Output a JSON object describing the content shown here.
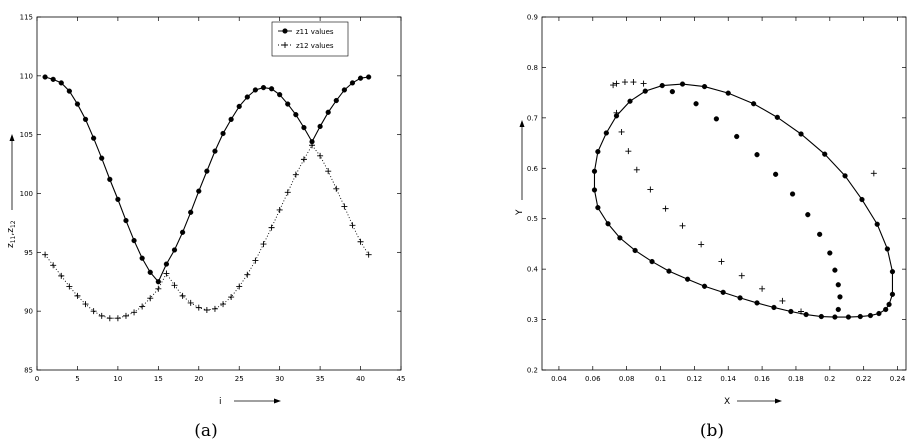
{
  "chart_data": [
    {
      "type": "line",
      "caption": "(a)",
      "xlabel": "i",
      "ylabel": "z11,z12",
      "xlim": [
        0,
        45
      ],
      "ylim": [
        85,
        115
      ],
      "xticks": [
        0,
        5,
        10,
        15,
        20,
        25,
        30,
        35,
        40,
        45
      ],
      "yticks": [
        85,
        90,
        95,
        100,
        105,
        110,
        115
      ],
      "legend_position": "top-right",
      "series": [
        {
          "name": "z11 values",
          "marker": "circle",
          "line": "solid",
          "x": [
            1,
            2,
            3,
            4,
            5,
            6,
            7,
            8,
            9,
            10,
            11,
            12,
            13,
            14,
            15,
            16,
            17,
            18,
            19,
            20,
            21,
            22,
            23,
            24,
            25,
            26,
            27,
            28,
            29,
            30,
            31,
            32,
            33,
            34,
            35,
            36,
            37,
            38,
            39,
            40,
            41
          ],
          "y": [
            109.9,
            109.7,
            109.4,
            108.7,
            107.6,
            106.3,
            104.7,
            103.0,
            101.2,
            99.5,
            97.7,
            96.0,
            94.5,
            93.3,
            92.5,
            94.0,
            95.2,
            96.7,
            98.4,
            100.2,
            101.9,
            103.6,
            105.1,
            106.3,
            107.4,
            108.2,
            108.8,
            109.0,
            108.9,
            108.4,
            107.6,
            106.7,
            105.6,
            104.4,
            105.7,
            106.9,
            107.9,
            108.8,
            109.4,
            109.8,
            109.9
          ]
        },
        {
          "name": "z12 values",
          "marker": "plus",
          "line": "dotted",
          "x": [
            1,
            2,
            3,
            4,
            5,
            6,
            7,
            8,
            9,
            10,
            11,
            12,
            13,
            14,
            15,
            16,
            17,
            18,
            19,
            20,
            21,
            22,
            23,
            24,
            25,
            26,
            27,
            28,
            29,
            30,
            31,
            32,
            33,
            34,
            35,
            36,
            37,
            38,
            39,
            40,
            41
          ],
          "y": [
            94.8,
            93.9,
            93.0,
            92.1,
            91.3,
            90.6,
            90.0,
            89.6,
            89.4,
            89.4,
            89.6,
            89.9,
            90.4,
            91.1,
            91.9,
            93.2,
            92.2,
            91.3,
            90.7,
            90.3,
            90.1,
            90.2,
            90.6,
            91.2,
            92.1,
            93.1,
            94.3,
            95.7,
            97.1,
            98.6,
            100.1,
            101.6,
            102.9,
            104.1,
            103.2,
            101.9,
            100.4,
            98.9,
            97.3,
            95.9,
            94.8
          ]
        }
      ]
    },
    {
      "type": "scatter",
      "caption": "(b)",
      "xlabel": "X",
      "ylabel": "Y",
      "xlim": [
        0.03,
        0.245
      ],
      "ylim": [
        0.2,
        0.9
      ],
      "xticks": [
        0.04,
        0.06,
        0.08,
        0.1,
        0.12,
        0.14,
        0.16,
        0.18,
        0.2,
        0.22,
        0.24
      ],
      "xtick_labels": [
        "0.04",
        "0.06",
        "0.08",
        "0.1",
        "0.12",
        "0.14",
        "0.16",
        "0.18",
        "0.2",
        "0.22",
        "0.24"
      ],
      "yticks": [
        0.2,
        0.3,
        0.4,
        0.5,
        0.6,
        0.7,
        0.8,
        0.9
      ],
      "ytick_labels": [
        "0.2",
        "0.3",
        "0.4",
        "0.5",
        "0.6",
        "0.7",
        "0.8",
        "0.9"
      ],
      "series": [
        {
          "marker": "circle",
          "line": "solid",
          "x": [
            0.237,
            0.235,
            0.233,
            0.229,
            0.224,
            0.218,
            0.211,
            0.203,
            0.195,
            0.186,
            0.177,
            0.167,
            0.157,
            0.147,
            0.137,
            0.126,
            0.116,
            0.105,
            0.095,
            0.085,
            0.076,
            0.069,
            0.063,
            0.061,
            0.061,
            0.063,
            0.068,
            0.074,
            0.082,
            0.091,
            0.101,
            0.113,
            0.126,
            0.14,
            0.155,
            0.169,
            0.183,
            0.197,
            0.209,
            0.219,
            0.228,
            0.234,
            0.237
          ],
          "y": [
            0.35,
            0.33,
            0.32,
            0.312,
            0.308,
            0.306,
            0.305,
            0.305,
            0.306,
            0.31,
            0.316,
            0.324,
            0.333,
            0.343,
            0.354,
            0.366,
            0.38,
            0.396,
            0.415,
            0.437,
            0.462,
            0.49,
            0.522,
            0.557,
            0.594,
            0.633,
            0.67,
            0.704,
            0.733,
            0.753,
            0.764,
            0.767,
            0.762,
            0.749,
            0.728,
            0.701,
            0.668,
            0.628,
            0.585,
            0.538,
            0.489,
            0.44,
            0.395
          ]
        },
        {
          "marker": "circle",
          "line": "none",
          "x": [
            0.107,
            0.121,
            0.133,
            0.145,
            0.157,
            0.168,
            0.178,
            0.187,
            0.194,
            0.2,
            0.203,
            0.205,
            0.206,
            0.205
          ],
          "y": [
            0.752,
            0.728,
            0.698,
            0.663,
            0.627,
            0.588,
            0.549,
            0.508,
            0.469,
            0.432,
            0.398,
            0.369,
            0.345,
            0.32
          ]
        },
        {
          "marker": "plus",
          "line": "none",
          "x": [
            0.072,
            0.074,
            0.077,
            0.081,
            0.086,
            0.094,
            0.103,
            0.113,
            0.124,
            0.136,
            0.148,
            0.16,
            0.172,
            0.183,
            0.074,
            0.079,
            0.084,
            0.09
          ],
          "y": [
            0.765,
            0.71,
            0.672,
            0.634,
            0.597,
            0.558,
            0.52,
            0.486,
            0.449,
            0.415,
            0.387,
            0.361,
            0.337,
            0.316,
            0.768,
            0.771,
            0.771,
            0.768
          ]
        },
        {
          "marker": "plus",
          "line": "none",
          "x": [
            0.226
          ],
          "y": [
            0.59
          ]
        }
      ]
    }
  ]
}
